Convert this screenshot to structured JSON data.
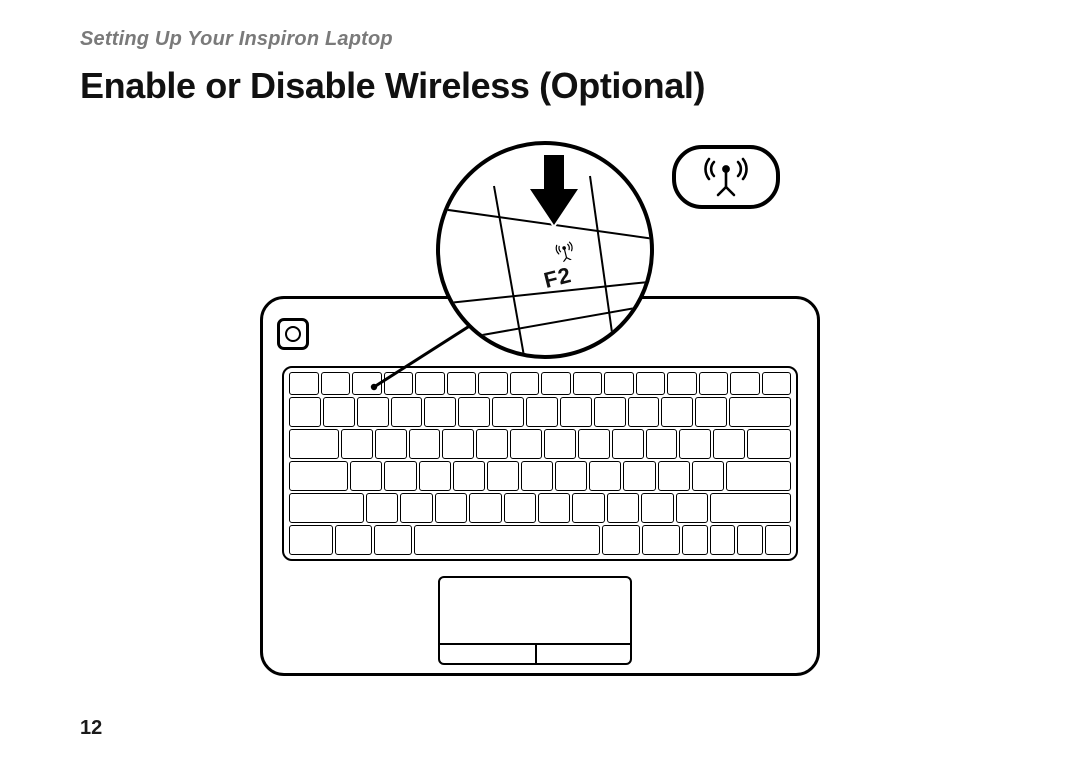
{
  "document": {
    "section_header": "Setting Up Your Inspiron Laptop",
    "title": "Enable or Disable Wireless (Optional)",
    "page_number": "12"
  },
  "diagram": {
    "magnifier": {
      "key_label": "F2",
      "icon": "wireless-antenna"
    },
    "badge": {
      "icon": "wireless-antenna"
    },
    "colors": {
      "stroke": "#000000",
      "background": "#ffffff",
      "header_gray": "#7a7a7a"
    },
    "keyboard": {
      "rows": [
        {
          "type": "fn",
          "keys": [
            1,
            1,
            1,
            1,
            1,
            1,
            1,
            1,
            1,
            1,
            1,
            1,
            1,
            1,
            1,
            1
          ]
        },
        {
          "keys": [
            1,
            1,
            1,
            1,
            1,
            1,
            1,
            1,
            1,
            1,
            1,
            1,
            1,
            2
          ]
        },
        {
          "keys": [
            1.6,
            1,
            1,
            1,
            1,
            1,
            1,
            1,
            1,
            1,
            1,
            1,
            1,
            1.4
          ]
        },
        {
          "keys": [
            1.9,
            1,
            1,
            1,
            1,
            1,
            1,
            1,
            1,
            1,
            1,
            1,
            2.1
          ]
        },
        {
          "keys": [
            2.4,
            1,
            1,
            1,
            1,
            1,
            1,
            1,
            1,
            1,
            1,
            2.6
          ]
        },
        {
          "keys": [
            1.4,
            1.2,
            1.2,
            6.2,
            1.2,
            1.2,
            0.8,
            0.8,
            0.8,
            0.8
          ]
        }
      ]
    }
  }
}
